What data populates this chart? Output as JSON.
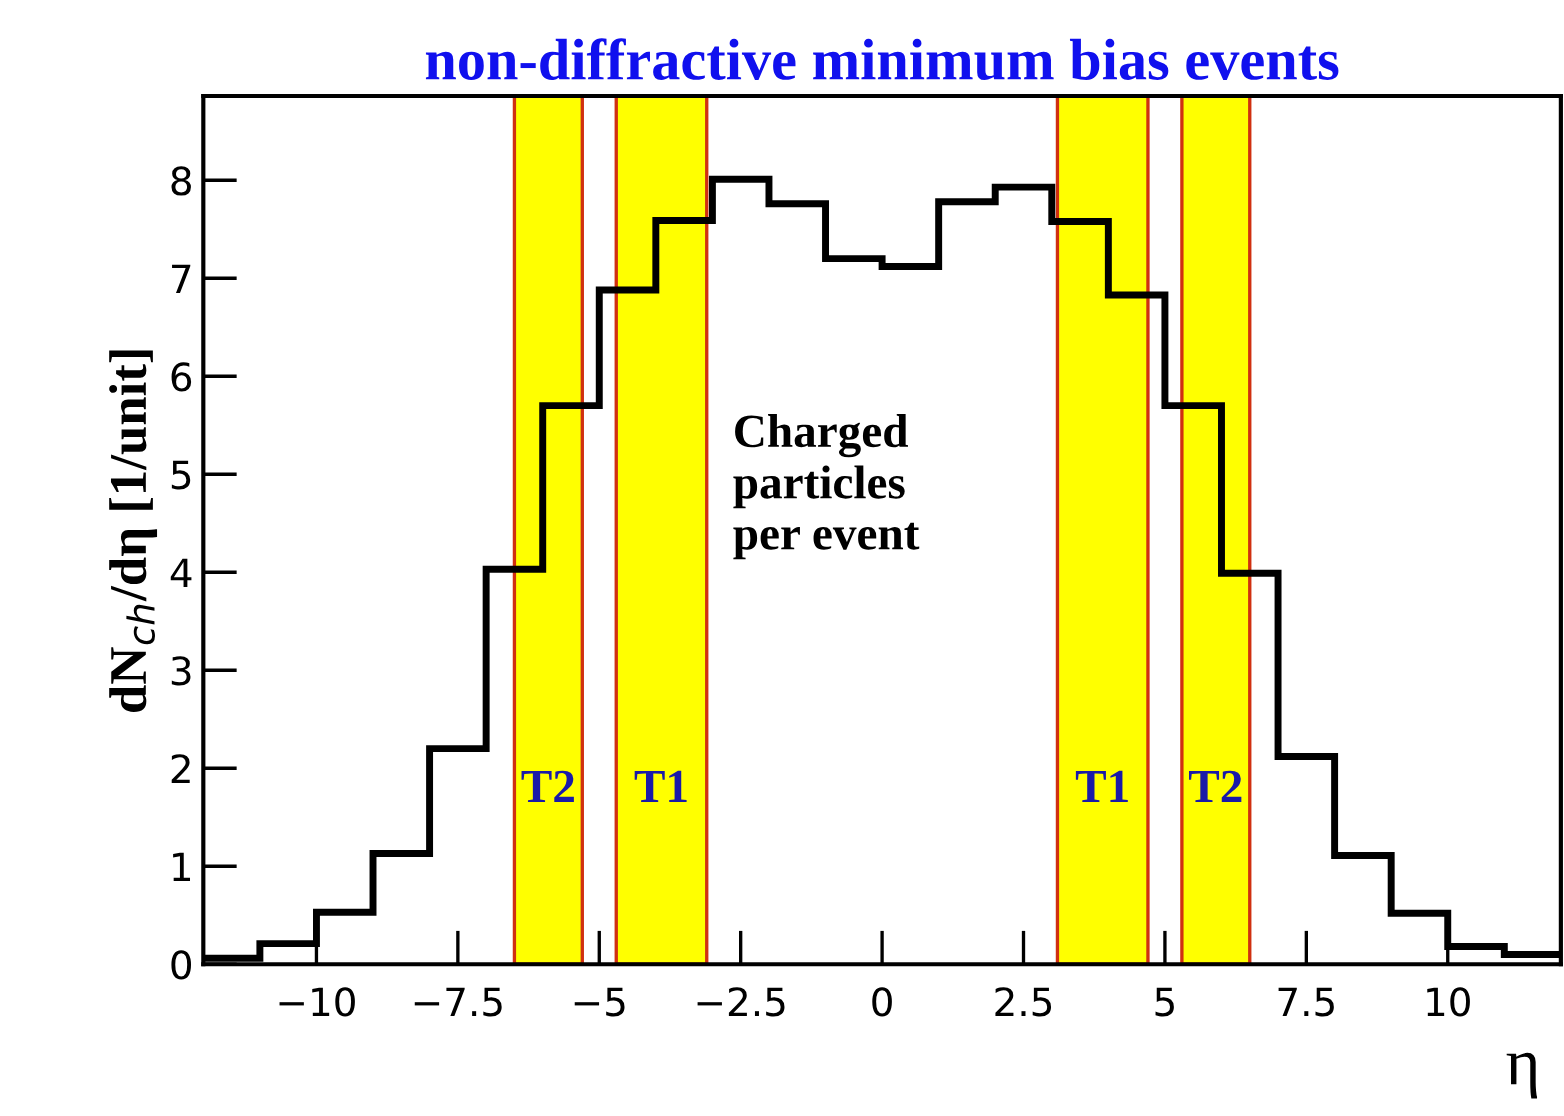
{
  "chart_data": {
    "type": "histogram",
    "title": "non-diffractive minimum bias events",
    "xlabel": "η",
    "ylabel": "dN$_{ch}$/dη [1/unit]",
    "bins": [
      -12,
      -11,
      -10,
      -9,
      -8,
      -7,
      -6,
      -5,
      -4,
      -3,
      -2,
      -1,
      0,
      1,
      2,
      3,
      4,
      5,
      6,
      7,
      8,
      9,
      10,
      11,
      12
    ],
    "values": [
      0.06,
      0.21,
      0.53,
      1.13,
      2.2,
      4.03,
      5.7,
      6.88,
      7.59,
      8.01,
      7.76,
      7.2,
      7.12,
      7.78,
      7.93,
      7.58,
      6.83,
      5.7,
      3.99,
      2.12,
      1.11,
      0.52,
      0.18,
      0.1
    ],
    "color": "#000000",
    "xlim": [
      -12,
      12
    ],
    "xticks": [
      -10,
      -7.5,
      -5,
      -2.5,
      0,
      2.5,
      5,
      7.5,
      10
    ],
    "ylim": [
      0,
      8.86
    ],
    "yticks": [
      0,
      1,
      2,
      3,
      4,
      5,
      6,
      7,
      8
    ],
    "bands": [
      {
        "axis": "x",
        "from": -6.5,
        "to": -5.3,
        "label": "T2",
        "color": "#ffff00"
      },
      {
        "axis": "x",
        "from": -4.7,
        "to": -3.1,
        "label": "T1",
        "color": "#ffff00"
      },
      {
        "axis": "x",
        "from": 3.1,
        "to": 4.7,
        "label": "T1",
        "color": "#ffff00"
      },
      {
        "axis": "x",
        "from": 5.3,
        "to": 6.5,
        "label": "T2",
        "color": "#ffff00"
      }
    ],
    "annotations": [
      "Charged\nparticles\nper event"
    ],
    "grid": false,
    "legend": false
  }
}
